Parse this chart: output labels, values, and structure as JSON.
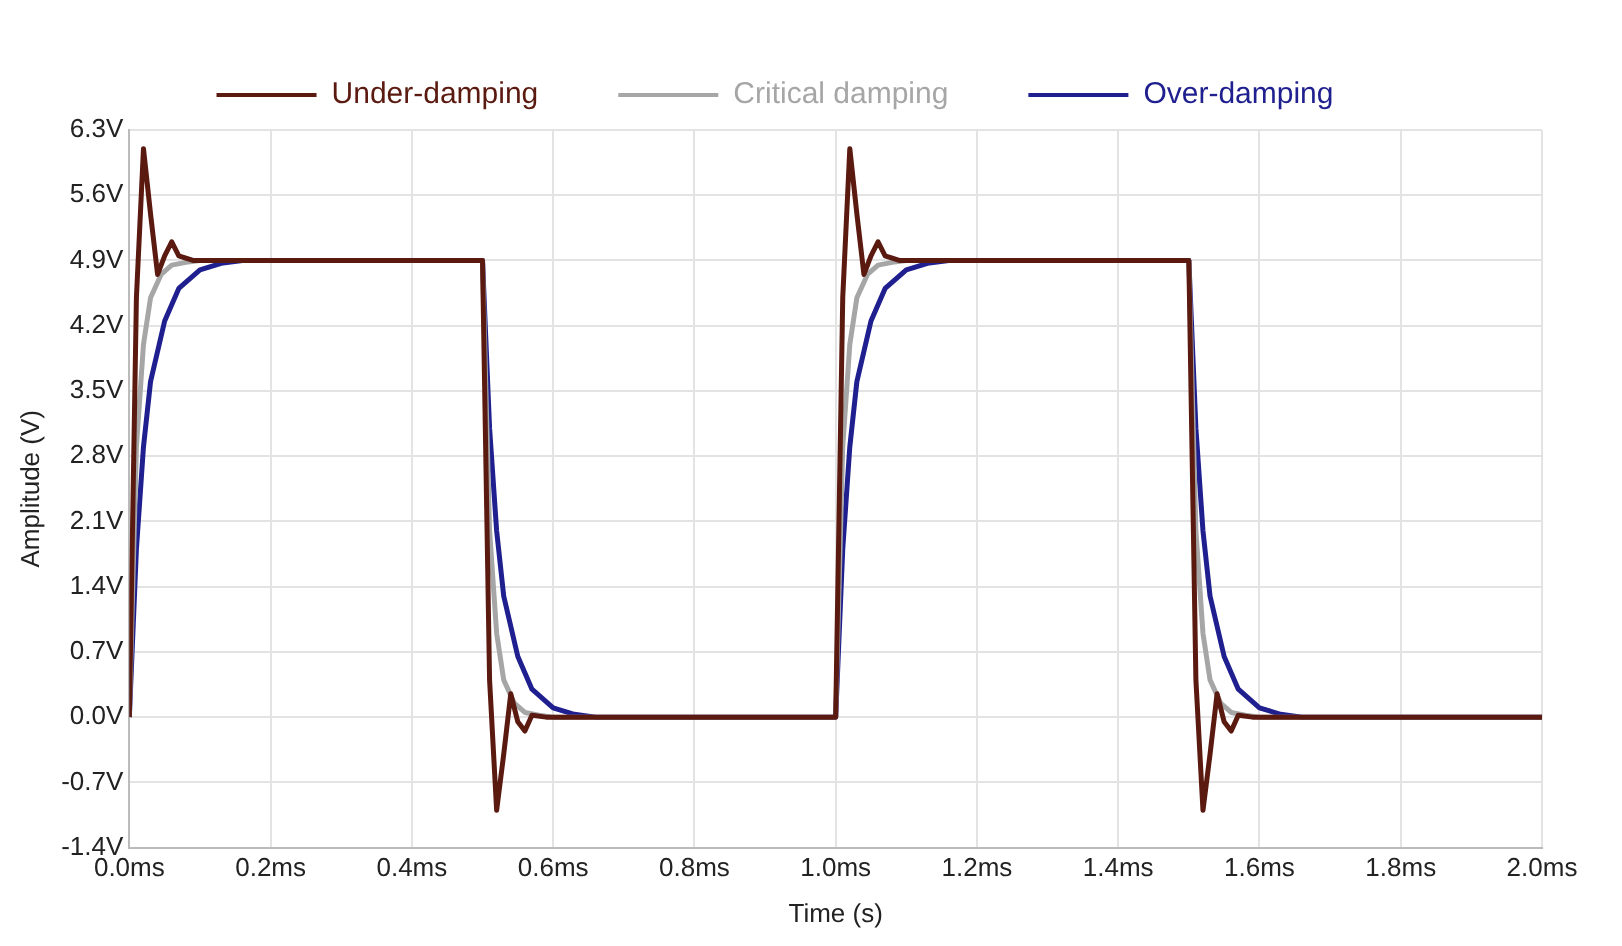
{
  "chart_data": {
    "type": "line",
    "xlabel": "Time (s)",
    "ylabel": "Amplitude (V)",
    "xlim": [
      0,
      2
    ],
    "ylim": [
      -1.4,
      6.3
    ],
    "xticks": [
      {
        "value": 0,
        "label": "0.0ms"
      },
      {
        "value": 0.2,
        "label": "0.2ms"
      },
      {
        "value": 0.4,
        "label": "0.4ms"
      },
      {
        "value": 0.6,
        "label": "0.6ms"
      },
      {
        "value": 0.8,
        "label": "0.8ms"
      },
      {
        "value": 1,
        "label": "1.0ms"
      },
      {
        "value": 1.2,
        "label": "1.2ms"
      },
      {
        "value": 1.4,
        "label": "1.4ms"
      },
      {
        "value": 1.6,
        "label": "1.6ms"
      },
      {
        "value": 1.8,
        "label": "1.8ms"
      },
      {
        "value": 2,
        "label": "2.0ms"
      }
    ],
    "yticks": [
      {
        "value": -1.4,
        "label": "-1.4V"
      },
      {
        "value": -0.7,
        "label": "-0.7V"
      },
      {
        "value": 0,
        "label": "0.0V"
      },
      {
        "value": 0.7,
        "label": "0.7V"
      },
      {
        "value": 1.4,
        "label": "1.4V"
      },
      {
        "value": 2.1,
        "label": "2.1V"
      },
      {
        "value": 2.8,
        "label": "2.8V"
      },
      {
        "value": 3.5,
        "label": "3.5V"
      },
      {
        "value": 4.2,
        "label": "4.2V"
      },
      {
        "value": 4.9,
        "label": "4.9V"
      },
      {
        "value": 5.6,
        "label": "5.6V"
      },
      {
        "value": 6.3,
        "label": "6.3V"
      }
    ],
    "grid": true,
    "legend": "top",
    "marker": "none",
    "line_style": "solid",
    "series": [
      {
        "name": "Under-damping",
        "color": "#5a1a10",
        "x": [
          0,
          0.01,
          0.02,
          0.03,
          0.04,
          0.05,
          0.06,
          0.07,
          0.09,
          0.5,
          0.51,
          0.52,
          0.53,
          0.54,
          0.55,
          0.56,
          0.57,
          0.59,
          1,
          1.01,
          1.02,
          1.03,
          1.04,
          1.05,
          1.06,
          1.07,
          1.09,
          1.5,
          1.51,
          1.52,
          1.53,
          1.54,
          1.55,
          1.56,
          1.57,
          1.59,
          2
        ],
        "values": [
          0,
          4.5,
          6.1,
          5.4,
          4.75,
          4.95,
          5.1,
          4.95,
          4.9,
          4.9,
          0.4,
          -1.0,
          -0.4,
          0.25,
          -0.05,
          -0.15,
          0.02,
          0,
          0,
          4.5,
          6.1,
          5.4,
          4.75,
          4.95,
          5.1,
          4.95,
          4.9,
          4.9,
          0.4,
          -1.0,
          -0.4,
          0.25,
          -0.05,
          -0.15,
          0.02,
          0,
          0
        ]
      },
      {
        "name": "Critical damping",
        "color": "#a6a6a6",
        "x": [
          0,
          0.01,
          0.02,
          0.03,
          0.045,
          0.06,
          0.08,
          0.1,
          0.5,
          0.51,
          0.52,
          0.53,
          0.545,
          0.56,
          0.58,
          0.6,
          1,
          1.01,
          1.02,
          1.03,
          1.045,
          1.06,
          1.08,
          1.1,
          1.5,
          1.51,
          1.52,
          1.53,
          1.545,
          1.56,
          1.58,
          1.6,
          2
        ],
        "values": [
          0,
          2.9,
          4.0,
          4.5,
          4.75,
          4.85,
          4.88,
          4.9,
          4.9,
          2.0,
          0.9,
          0.4,
          0.15,
          0.05,
          0.02,
          0,
          0,
          2.9,
          4.0,
          4.5,
          4.75,
          4.85,
          4.88,
          4.9,
          4.9,
          2.0,
          0.9,
          0.4,
          0.15,
          0.05,
          0.02,
          0,
          0
        ]
      },
      {
        "name": "Over-damping",
        "color": "#1f1f8f",
        "x": [
          0,
          0.01,
          0.02,
          0.03,
          0.05,
          0.07,
          0.1,
          0.13,
          0.16,
          0.5,
          0.51,
          0.52,
          0.53,
          0.55,
          0.57,
          0.6,
          0.63,
          0.66,
          1,
          1.01,
          1.02,
          1.03,
          1.05,
          1.07,
          1.1,
          1.13,
          1.16,
          1.5,
          1.51,
          1.52,
          1.53,
          1.55,
          1.57,
          1.6,
          1.63,
          1.66,
          2
        ],
        "values": [
          0,
          1.8,
          2.9,
          3.6,
          4.25,
          4.6,
          4.8,
          4.87,
          4.9,
          4.9,
          3.1,
          2.0,
          1.3,
          0.65,
          0.3,
          0.1,
          0.03,
          0,
          0,
          1.8,
          2.9,
          3.6,
          4.25,
          4.6,
          4.8,
          4.87,
          4.9,
          4.9,
          3.1,
          2.0,
          1.3,
          0.65,
          0.3,
          0.1,
          0.03,
          0,
          0
        ]
      }
    ]
  }
}
